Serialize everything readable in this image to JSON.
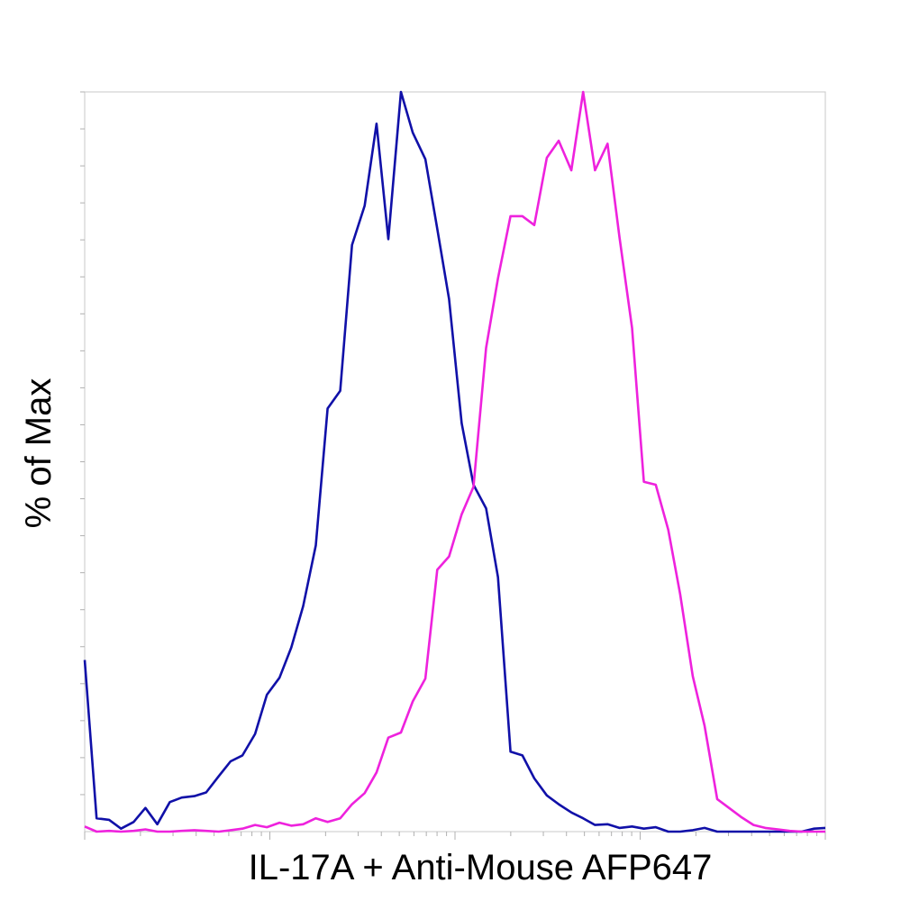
{
  "chart_data": {
    "type": "line",
    "title": "",
    "xlabel": "IL-17A + Anti-Mouse AFP647",
    "ylabel": "% of Max",
    "x_scale": "log",
    "x_tick_labels_shown": false,
    "y_tick_labels_shown": false,
    "xlim": [
      0,
      100
    ],
    "ylim": [
      0,
      100
    ],
    "grid": false,
    "legend": "none",
    "colors": {
      "series_1": "#1010a8",
      "series_2": "#ee22dd",
      "axis": "#b0b0b0"
    },
    "series": [
      {
        "color": "#1010a8",
        "x": [
          0,
          1.6,
          3.3,
          4.9,
          6.6,
          8.2,
          9.8,
          11.5,
          13.1,
          14.8,
          16.4,
          18.1,
          19.7,
          21.3,
          23.0,
          24.6,
          26.3,
          27.9,
          29.5,
          31.2,
          32.8,
          34.5,
          36.1,
          37.8,
          39.4,
          41.0,
          42.7,
          44.3,
          46.0,
          47.6,
          49.2,
          50.9,
          52.5,
          54.2,
          55.8,
          57.5,
          59.1,
          60.7,
          62.4,
          64.0,
          65.7,
          67.3,
          68.9,
          70.6,
          72.2,
          73.9,
          75.5,
          77.1,
          78.8,
          80.4,
          82.1,
          83.7,
          85.4,
          87.0,
          88.6,
          90.3,
          91.9,
          93.6,
          95.2,
          96.8,
          98.5,
          100
        ],
        "y": [
          23.2,
          1.8,
          1.6,
          0.4,
          1.3,
          3.2,
          1.0,
          4.0,
          4.6,
          4.8,
          5.3,
          7.5,
          9.5,
          10.3,
          13.2,
          18.5,
          20.8,
          24.9,
          30.5,
          38.7,
          57.2,
          59.6,
          79.3,
          84.6,
          95.7,
          80.1,
          100,
          94.5,
          90.9,
          81.5,
          72.0,
          55.2,
          46.9,
          43.7,
          34.4,
          10.8,
          10.3,
          7.2,
          4.9,
          3.7,
          2.6,
          1.8,
          0.9,
          1.0,
          0.5,
          0.7,
          0.4,
          0.6,
          0.0,
          0.0,
          0.2,
          0.5,
          0.0,
          0.0,
          0.0,
          0.0,
          0.0,
          0.0,
          0.0,
          0.0,
          0.4,
          0.5
        ]
      },
      {
        "color": "#ee22dd",
        "x": [
          0,
          1.6,
          3.3,
          4.9,
          6.6,
          8.2,
          9.8,
          11.5,
          13.1,
          14.8,
          16.4,
          18.1,
          19.7,
          21.3,
          23.0,
          24.6,
          26.3,
          27.9,
          29.5,
          31.2,
          32.8,
          34.5,
          36.1,
          37.8,
          39.4,
          41.0,
          42.7,
          44.3,
          46.0,
          47.6,
          49.2,
          50.9,
          52.5,
          54.2,
          55.8,
          57.5,
          59.1,
          60.7,
          62.4,
          64.0,
          65.7,
          67.3,
          68.9,
          70.6,
          72.2,
          73.9,
          75.5,
          77.1,
          78.8,
          80.4,
          82.1,
          83.7,
          85.4,
          87.0,
          88.6,
          90.3,
          91.9,
          93.6,
          95.2,
          96.8,
          98.5,
          100
        ],
        "y": [
          0.7,
          0.0,
          0.1,
          0.0,
          0.1,
          0.3,
          0.0,
          0.0,
          0.1,
          0.2,
          0.1,
          0.0,
          0.2,
          0.4,
          0.9,
          0.6,
          1.2,
          0.8,
          1.0,
          1.8,
          1.3,
          1.8,
          3.7,
          5.2,
          8.0,
          12.7,
          13.4,
          17.6,
          20.7,
          35.4,
          37.2,
          42.9,
          46.6,
          65.4,
          74.8,
          83.2,
          83.2,
          82.0,
          91.1,
          93.4,
          89.4,
          100,
          89.4,
          93.0,
          80.4,
          68.1,
          47.3,
          46.9,
          40.8,
          32.1,
          21.0,
          14.3,
          4.4,
          3.2,
          2.0,
          0.9,
          0.5,
          0.3,
          0.1,
          0.0,
          0.0,
          0.0
        ]
      }
    ]
  }
}
